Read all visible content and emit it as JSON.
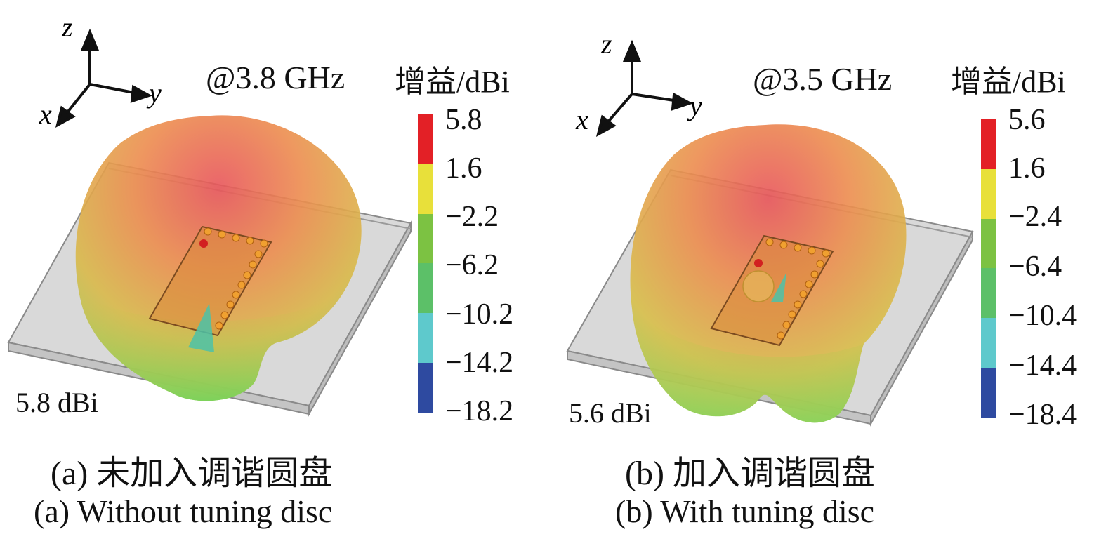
{
  "panels": [
    {
      "frequency": "@3.8 GHz",
      "colorbar_title": "增益/dBi",
      "colorbar_ticks": [
        "5.8",
        "1.6",
        "−2.2",
        "−6.2",
        "−10.2",
        "−14.2",
        "−18.2"
      ],
      "peak_label": "5.8 dBi",
      "caption_cn": "(a) 未加入调谐圆盘",
      "caption_en": "(a) Without tuning disc",
      "axes": {
        "x": "x",
        "y": "y",
        "z": "z"
      }
    },
    {
      "frequency": "@3.5 GHz",
      "colorbar_title": "增益/dBi",
      "colorbar_ticks": [
        "5.6",
        "1.6",
        "−2.4",
        "−6.4",
        "−10.4",
        "−14.4",
        "−18.4"
      ],
      "peak_label": "5.6 dBi",
      "caption_cn": "(b) 加入调谐圆盘",
      "caption_en": "(b) With tuning disc",
      "axes": {
        "x": "x",
        "y": "y",
        "z": "z"
      }
    }
  ],
  "colorbar_colors": [
    "#e32026",
    "#e8e03a",
    "#7cc242",
    "#5cc068",
    "#5ec9cc",
    "#2e4aa0"
  ]
}
